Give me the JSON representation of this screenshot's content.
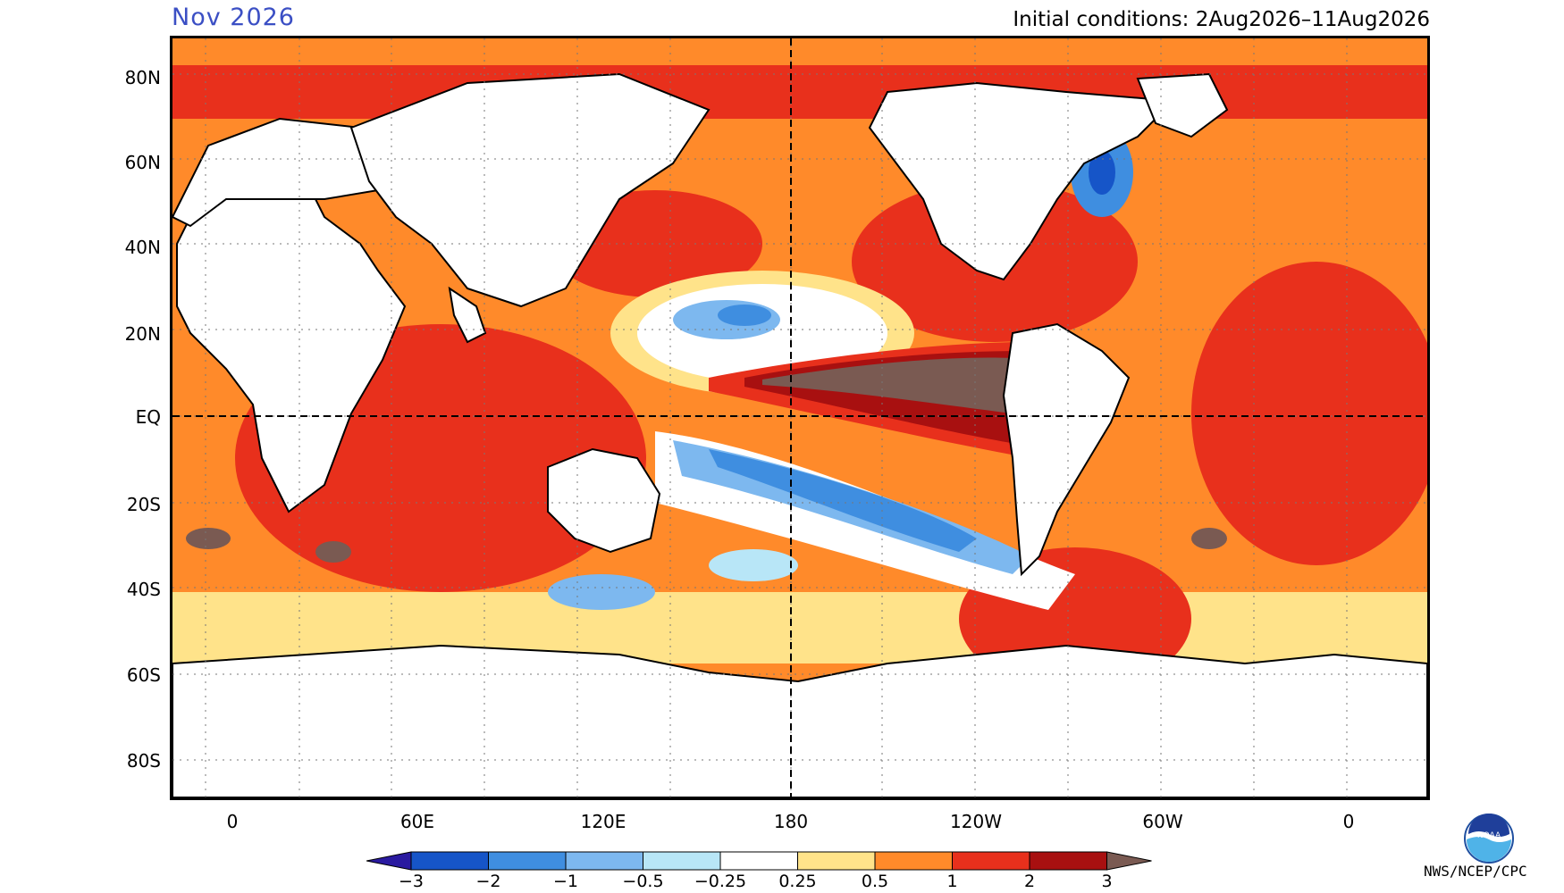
{
  "header": {
    "period": "Nov 2026",
    "initial_conditions": "Initial conditions: 2Aug2026–11Aug2026"
  },
  "axes": {
    "lat_labels": [
      "80N",
      "60N",
      "40N",
      "20N",
      "EQ",
      "20S",
      "40S",
      "60S",
      "80S"
    ],
    "lon_labels": [
      "0",
      "60E",
      "120E",
      "180",
      "120W",
      "60W",
      "0"
    ]
  },
  "colorbar": {
    "labels": [
      "−3",
      "−2",
      "−1",
      "−0.5",
      "−0.25",
      "0.25",
      "0.5",
      "1",
      "2",
      "3"
    ],
    "colors": [
      "#2a1aa0",
      "#1655c8",
      "#3f8ee0",
      "#7db8ef",
      "#b8e6f7",
      "#ffffff",
      "#ffe38a",
      "#ff8a2a",
      "#e8301c",
      "#a81010",
      "#7a5a52"
    ]
  },
  "credit": "NWS/NCEP/CPC",
  "logo": {
    "name": "noaa-logo",
    "text": "NOAA"
  },
  "colors": {
    "title_blue": "#3b4fc4",
    "ocean_warm_light": "#ffe38a",
    "ocean_warm_med": "#ff8a2a",
    "ocean_warm": "#e8301c",
    "ocean_hot": "#a81010",
    "ocean_extreme": "#7a5a52",
    "ocean_cool": "#3f8ee0",
    "ocean_cold": "#1655c8",
    "land": "#ffffff"
  }
}
